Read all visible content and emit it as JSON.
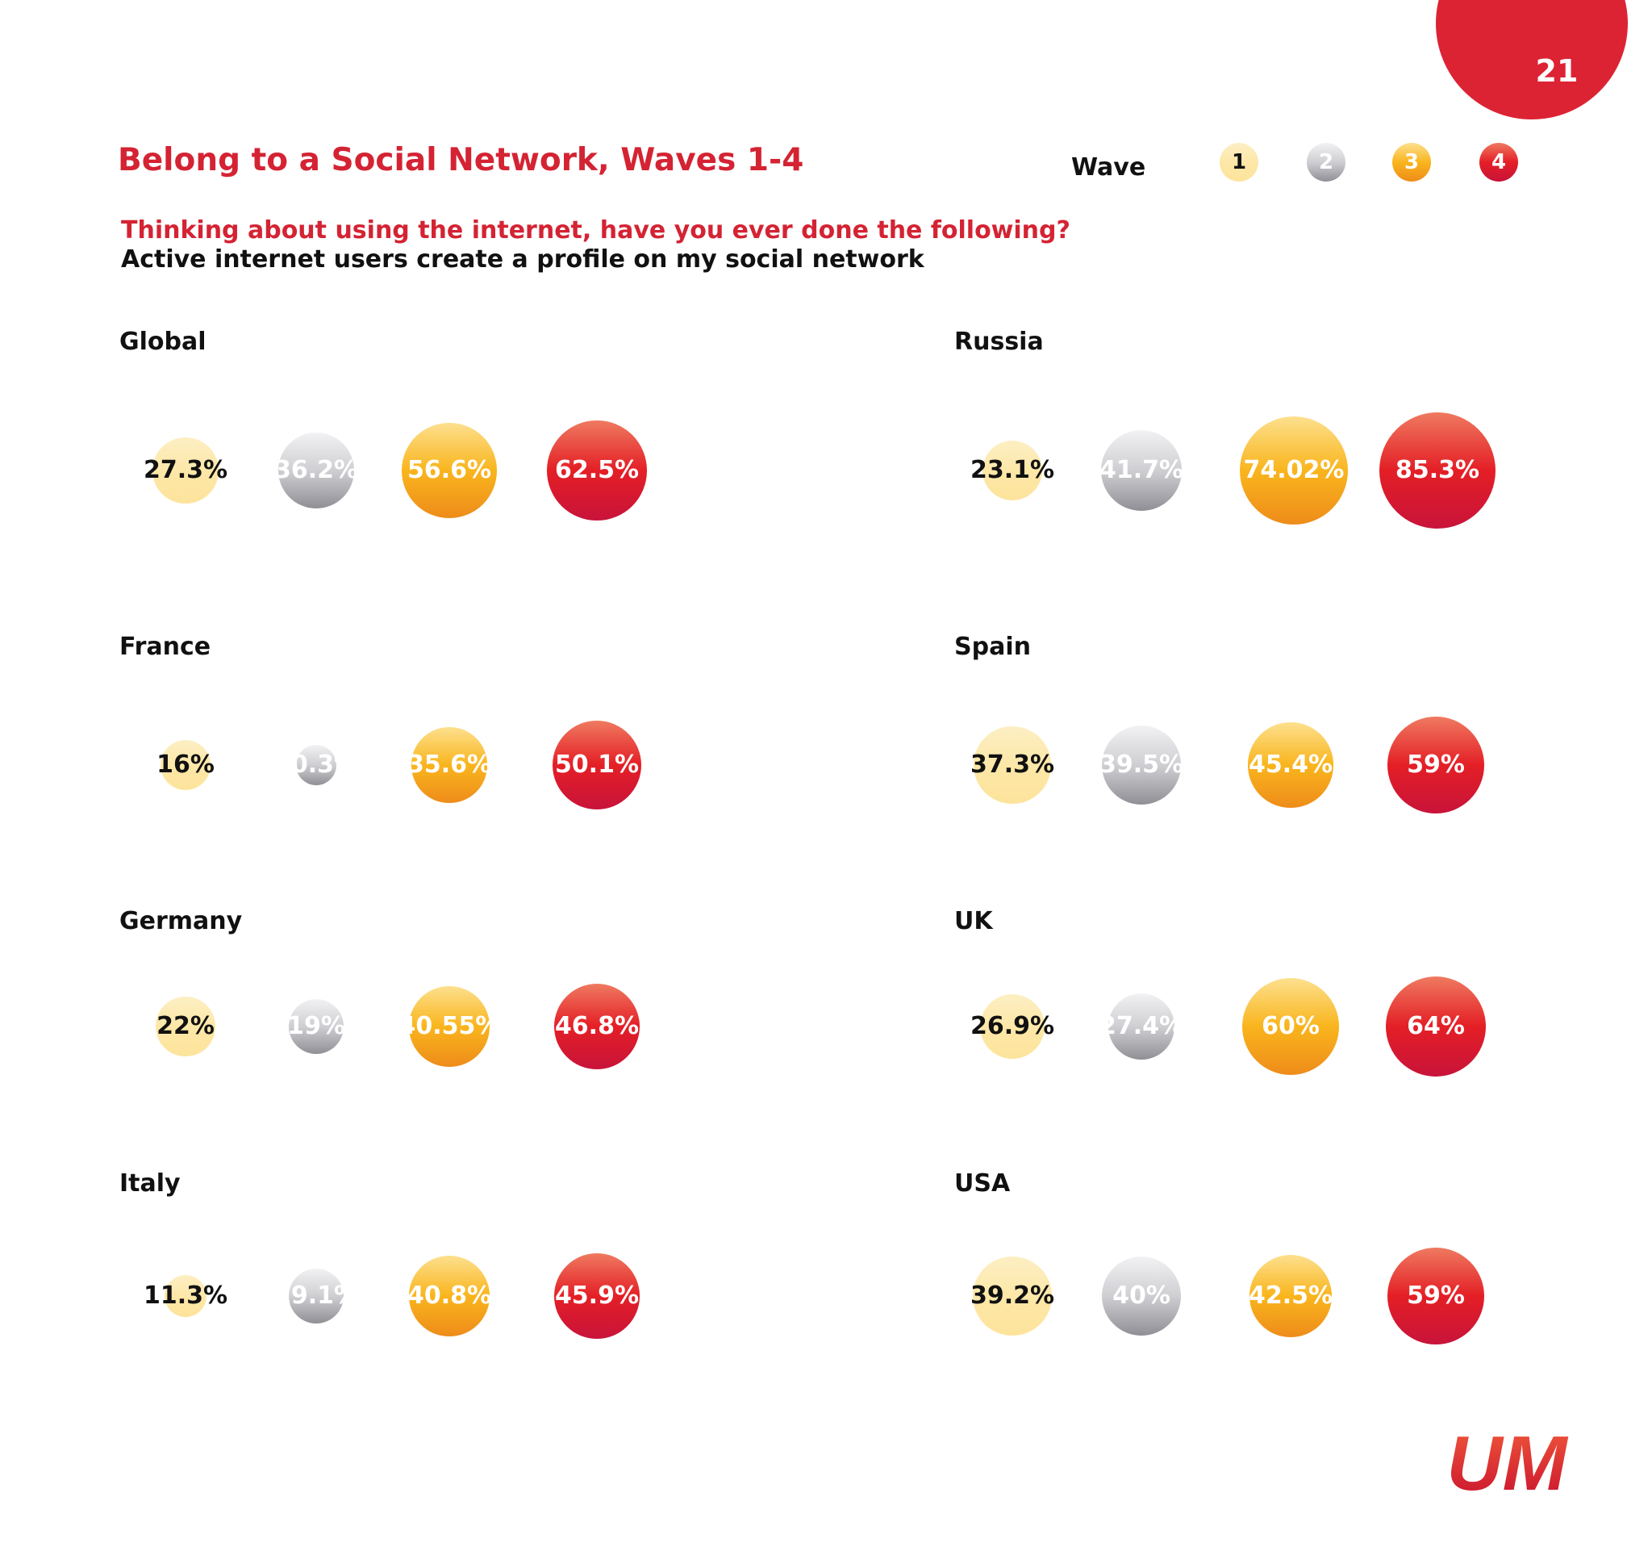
{
  "page_number": "21",
  "title": "Belong to a Social Network, Waves 1-4",
  "question": "Thinking about using the internet, have you ever done the following?",
  "subtitle": "Active internet users create a profile on my social network",
  "legend": {
    "label": "Wave",
    "items": [
      "1",
      "2",
      "3",
      "4"
    ]
  },
  "colors": {
    "wave1": "#fde7a6",
    "wave2": "#bcbcc1",
    "wave3": "#f9b51d",
    "wave4": "#e41f26",
    "brand": "#d42333"
  },
  "logo": "UM",
  "chart_data": [
    {
      "type": "bubble",
      "title": "Global",
      "values": [
        27.3,
        36.2,
        56.6,
        62.5
      ],
      "labels": [
        "27.3%",
        "36.2%",
        "56.6%",
        "62.5%"
      ]
    },
    {
      "type": "bubble",
      "title": "Russia",
      "values": [
        23.1,
        41.7,
        74.02,
        85.3
      ],
      "labels": [
        "23.1%",
        "41.7%",
        "74.02%",
        "85.3%"
      ]
    },
    {
      "type": "bubble",
      "title": "France",
      "values": [
        16,
        10.3,
        35.6,
        50.1
      ],
      "labels": [
        "16%",
        "10.3%",
        "35.6%",
        "50.1%"
      ]
    },
    {
      "type": "bubble",
      "title": "Spain",
      "values": [
        37.3,
        39.5,
        45.4,
        59
      ],
      "labels": [
        "37.3%",
        "39.5%",
        "45.4%",
        "59%"
      ]
    },
    {
      "type": "bubble",
      "title": "Germany",
      "values": [
        22,
        19,
        40.55,
        46.8
      ],
      "labels": [
        "22%",
        "19%",
        "40.55%",
        "46.8%"
      ]
    },
    {
      "type": "bubble",
      "title": "UK",
      "values": [
        26.9,
        27.4,
        60,
        64
      ],
      "labels": [
        "26.9%",
        "27.4%",
        "60%",
        "64%"
      ]
    },
    {
      "type": "bubble",
      "title": "Italy",
      "values": [
        11.3,
        19.1,
        40.8,
        45.9
      ],
      "labels": [
        "11.3%",
        "19.1%",
        "40.8%",
        "45.9%"
      ]
    },
    {
      "type": "bubble",
      "title": "USA",
      "values": [
        39.2,
        40,
        42.5,
        59
      ],
      "labels": [
        "39.2%",
        "40%",
        "42.5%",
        "59%"
      ]
    }
  ]
}
